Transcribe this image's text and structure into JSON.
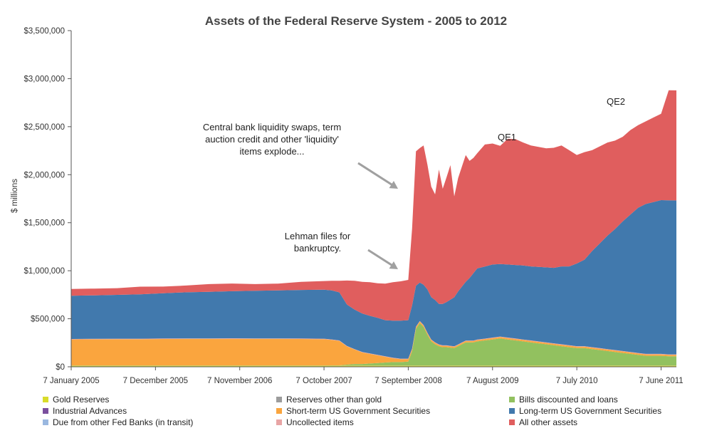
{
  "chart_data": {
    "type": "area",
    "title": "Assets of the Federal Reserve System - 2005 to 2012",
    "ylabel": "$ millions",
    "ylim": [
      0,
      3500000
    ],
    "y_ticks": [
      "$0",
      "$500,000",
      "$1,000,000",
      "$1,500,000",
      "$2,000,000",
      "$2,500,000",
      "$3,000,000",
      "$3,500,000"
    ],
    "x_ticks": [
      "7 January 2005",
      "7 December 2005",
      "7 November 2006",
      "7 October 2007",
      "7 September 2008",
      "7 August 2009",
      "7 July 2010",
      "7 June 2011"
    ],
    "x_months": [
      0,
      11,
      22,
      33,
      44,
      55,
      66,
      77
    ],
    "x_domain": [
      0,
      79
    ],
    "grid": false,
    "legend_position": "bottom",
    "x": [
      0,
      3,
      6,
      9,
      12,
      15,
      18,
      21,
      24,
      27,
      30,
      33,
      34,
      35,
      36,
      37,
      38,
      39,
      40,
      41,
      42,
      43,
      44,
      44.5,
      45,
      45.5,
      46,
      46.5,
      47,
      47.5,
      48,
      48.5,
      49,
      49.5,
      50,
      50.5,
      51,
      51.5,
      52,
      52.5,
      53,
      54,
      55,
      56,
      57,
      58,
      59,
      60,
      61,
      62,
      63,
      64,
      65,
      66,
      67,
      68,
      69,
      70,
      71,
      72,
      73,
      74,
      75,
      76,
      77,
      78,
      79
    ],
    "series": [
      {
        "name": "Gold Reserves",
        "color": "#d9dc2a",
        "values": [
          11000,
          11000,
          11000,
          11000,
          11000,
          11000,
          11000,
          11000,
          11000,
          11000,
          11000,
          11000,
          11000,
          11000,
          11000,
          11000,
          11000,
          11000,
          11000,
          11000,
          11000,
          11000,
          11000,
          11000,
          11000,
          11000,
          11000,
          11000,
          11000,
          11000,
          11000,
          11000,
          11000,
          11000,
          11000,
          11000,
          11000,
          11000,
          11000,
          11000,
          11000,
          11000,
          11000,
          11000,
          11000,
          11000,
          11000,
          11000,
          11000,
          11000,
          11000,
          11000,
          11000,
          11000,
          11000,
          11000,
          11000,
          11000,
          11000,
          11000,
          11000,
          11000,
          11000,
          11000,
          11000,
          11000,
          11000
        ]
      },
      {
        "name": "Reserves other than gold",
        "color": "#9c9c9c",
        "values": [
          2200,
          2200,
          2200,
          2200,
          2200,
          2200,
          2200,
          2200,
          2200,
          2200,
          2200,
          2200,
          2200,
          2200,
          2200,
          2200,
          2200,
          2200,
          2200,
          2200,
          2200,
          2200,
          2200,
          2200,
          2200,
          2200,
          2200,
          2200,
          2200,
          2200,
          2200,
          2200,
          2200,
          2200,
          2200,
          2200,
          2200,
          2200,
          2200,
          2200,
          2200,
          2200,
          2200,
          2200,
          2200,
          2200,
          2200,
          2200,
          2200,
          2200,
          2200,
          2200,
          2200,
          2200,
          2200,
          2200,
          2200,
          2200,
          2200,
          2200,
          2200,
          2200,
          2200,
          2200,
          2200,
          2200,
          2200
        ]
      },
      {
        "name": "Industrial Advances",
        "color": "#7b4f9e",
        "values": [
          0,
          0,
          0,
          0,
          0,
          0,
          0,
          0,
          0,
          0,
          0,
          0,
          0,
          0,
          0,
          0,
          0,
          0,
          0,
          0,
          0,
          0,
          0,
          0,
          0,
          0,
          0,
          0,
          0,
          0,
          0,
          0,
          0,
          0,
          0,
          0,
          0,
          0,
          0,
          0,
          0,
          0,
          0,
          0,
          0,
          0,
          0,
          0,
          0,
          0,
          0,
          0,
          0,
          0,
          0,
          0,
          0,
          0,
          0,
          0,
          0,
          0,
          0,
          0,
          0,
          0,
          0
        ]
      },
      {
        "name": "Due from other Fed Banks (in transit)",
        "color": "#9ab8e0",
        "values": [
          1000,
          1000,
          1000,
          1000,
          1000,
          1000,
          1000,
          1000,
          1000,
          1000,
          1000,
          1000,
          1000,
          1000,
          1000,
          1000,
          1000,
          1000,
          1000,
          1000,
          1000,
          1000,
          1000,
          1000,
          1000,
          1000,
          1000,
          1000,
          1000,
          1000,
          1000,
          1000,
          1000,
          1000,
          1000,
          1000,
          1000,
          1000,
          1000,
          1000,
          1000,
          1000,
          1000,
          1000,
          1000,
          1000,
          1000,
          1000,
          1000,
          1000,
          1000,
          1000,
          1000,
          1000,
          1000,
          1000,
          1000,
          1000,
          1000,
          1000,
          1000,
          1000,
          1000,
          1000,
          1000,
          1000,
          1000
        ]
      },
      {
        "name": "Bills discounted and loans",
        "color": "#92c15f",
        "values": [
          200,
          200,
          200,
          200,
          200,
          200,
          200,
          200,
          200,
          200,
          200,
          200,
          300,
          400,
          8000,
          15000,
          15000,
          20000,
          25000,
          30000,
          35000,
          35000,
          40000,
          150000,
          380000,
          440000,
          400000,
          320000,
          250000,
          220000,
          200000,
          190000,
          190000,
          185000,
          180000,
          200000,
          220000,
          240000,
          240000,
          240000,
          250000,
          260000,
          270000,
          280000,
          270000,
          260000,
          250000,
          240000,
          230000,
          220000,
          210000,
          200000,
          190000,
          180000,
          180000,
          170000,
          160000,
          150000,
          140000,
          130000,
          120000,
          110000,
          100000,
          100000,
          100000,
          95000,
          95000
        ]
      },
      {
        "name": "Short-term US Government Securities",
        "color": "#faa53e",
        "values": [
          270000,
          272000,
          273000,
          273000,
          275000,
          276000,
          276000,
          277000,
          276000,
          276000,
          275000,
          273000,
          265000,
          255000,
          190000,
          150000,
          120000,
          100000,
          80000,
          60000,
          40000,
          30000,
          25000,
          20000,
          18000,
          17000,
          15000,
          15000,
          15000,
          15000,
          14000,
          14000,
          14000,
          14000,
          14000,
          14000,
          14000,
          14000,
          14000,
          14000,
          14000,
          14000,
          15000,
          15000,
          15000,
          15000,
          15000,
          15000,
          15000,
          15000,
          15000,
          15000,
          15000,
          15000,
          15000,
          15000,
          15000,
          15000,
          15000,
          15000,
          15000,
          15000,
          15000,
          15000,
          15000,
          15000,
          15000
        ]
      },
      {
        "name": "Uncollected items",
        "color": "#e8a5a5",
        "values": [
          5000,
          5000,
          5000,
          5000,
          5000,
          5000,
          5000,
          5000,
          5000,
          5000,
          5000,
          5000,
          5000,
          5000,
          5000,
          5000,
          5000,
          5000,
          5000,
          5000,
          5000,
          5000,
          5000,
          5000,
          5000,
          5000,
          5000,
          5000,
          5000,
          5000,
          5000,
          5000,
          5000,
          5000,
          5000,
          5000,
          5000,
          5000,
          5000,
          5000,
          5000,
          5000,
          5000,
          5000,
          5000,
          5000,
          5000,
          5000,
          5000,
          5000,
          5000,
          5000,
          5000,
          5000,
          5000,
          5000,
          5000,
          5000,
          5000,
          5000,
          5000,
          5000,
          5000,
          5000,
          5000,
          5000,
          5000
        ]
      },
      {
        "name": "Long-term US Government Securities",
        "color": "#4179ad",
        "values": [
          450600,
          452600,
          456600,
          461600,
          470600,
          480600,
          485600,
          490600,
          495600,
          500600,
          505600,
          510600,
          510500,
          500400,
          430800,
          410800,
          400800,
          390800,
          385800,
          375800,
          385800,
          395800,
          400800,
          450800,
          425800,
          400800,
          420800,
          450800,
          440800,
          440800,
          420800,
          430800,
          450800,
          480800,
          510800,
          550800,
          580800,
          610800,
          650800,
          700800,
          740800,
          750800,
          760800,
          755800,
          760800,
          765800,
          770800,
          770800,
          775800,
          780800,
          785800,
          810800,
          820800,
          860800,
          900800,
          1000800,
          1090800,
          1180800,
          1260800,
          1350800,
          1430800,
          1510800,
          1560800,
          1580800,
          1600800,
          1603800,
          1602800
        ]
      },
      {
        "name": "All other assets",
        "color": "#e05e5e",
        "values": [
          70000,
          70000,
          70000,
          80000,
          70000,
          70000,
          80000,
          80000,
          70000,
          70000,
          85000,
          90000,
          100000,
          120000,
          250000,
          300000,
          330000,
          350000,
          360000,
          380000,
          400000,
          410000,
          420000,
          800000,
          1400000,
          1400000,
          1450000,
          1300000,
          1150000,
          1100000,
          1400000,
          1200000,
          1300000,
          1400000,
          1050000,
          1180000,
          1250000,
          1320000,
          1220000,
          1200000,
          1200000,
          1270000,
          1260000,
          1230000,
          1310000,
          1310000,
          1280000,
          1260000,
          1250000,
          1240000,
          1250000,
          1260000,
          1210000,
          1130000,
          1120000,
          1050000,
          1010000,
          970000,
          920000,
          880000,
          880000,
          860000,
          860000,
          880000,
          900000,
          1146000,
          1146000
        ]
      }
    ],
    "annotations": [
      {
        "lines": [
          "Central bank liquidity swaps, term",
          "auction credit and other 'liquidity'",
          "items explode..."
        ]
      },
      {
        "lines": [
          "Lehman files for",
          "bankruptcy."
        ]
      },
      {
        "lines": [
          "QE1"
        ]
      },
      {
        "lines": [
          "QE2"
        ]
      }
    ]
  }
}
